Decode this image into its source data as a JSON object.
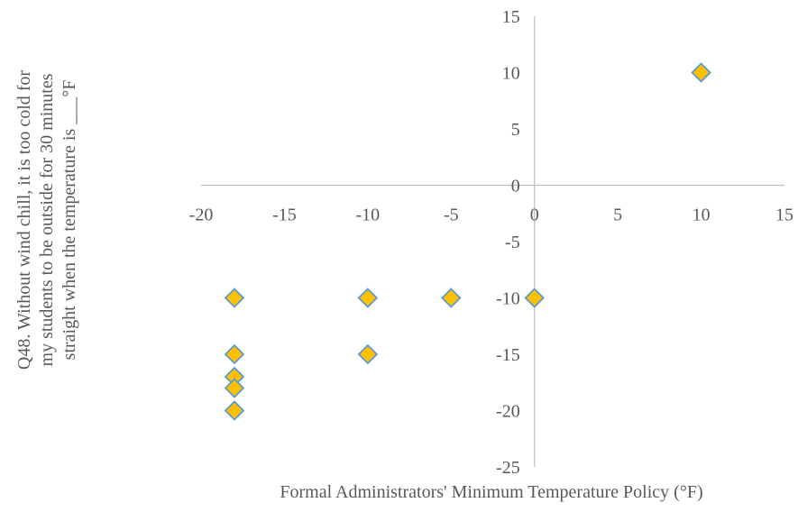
{
  "chart_data": {
    "type": "scatter",
    "title": "",
    "xlabel": "Formal Administrators' Minimum Temperature Policy (°F)",
    "ylabel_lines": [
      "Q48. Without wind chill, it is too cold for",
      "my students to be outside for 30 minutes",
      "straight when the temperature is ___°F"
    ],
    "xlim": [
      -20,
      15
    ],
    "ylim": [
      -25,
      15
    ],
    "x_ticks": [
      -20,
      -15,
      -10,
      -5,
      0,
      5,
      10,
      15
    ],
    "y_ticks": [
      -25,
      -20,
      -15,
      -10,
      -5,
      0,
      5,
      10,
      15
    ],
    "grid": false,
    "legend": "none",
    "marker": {
      "shape": "diamond",
      "fill": "#FFC000",
      "stroke": "#5B9BD5"
    },
    "series": [
      {
        "points": [
          {
            "x": 10,
            "y": 10
          },
          {
            "x": -18,
            "y": -10
          },
          {
            "x": -10,
            "y": -10
          },
          {
            "x": -5,
            "y": -10
          },
          {
            "x": 0,
            "y": -10
          },
          {
            "x": -18,
            "y": -15
          },
          {
            "x": -10,
            "y": -15
          },
          {
            "x": -18,
            "y": -17
          },
          {
            "x": -18,
            "y": -18
          },
          {
            "x": -18,
            "y": -20
          }
        ]
      }
    ]
  }
}
